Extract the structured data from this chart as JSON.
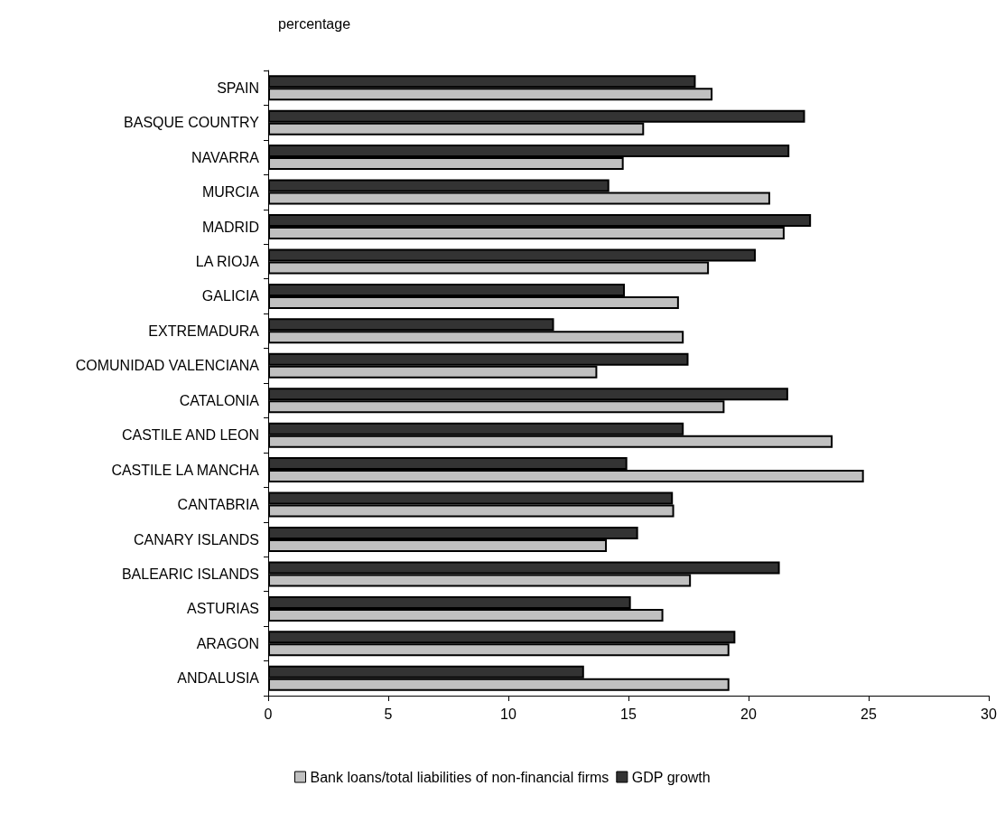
{
  "chart_data": {
    "type": "bar",
    "orientation": "horizontal",
    "xlabel": "percentage",
    "categories": [
      "SPAIN",
      "BASQUE COUNTRY",
      "NAVARRA",
      "MURCIA",
      "MADRID",
      "LA RIOJA",
      "GALICIA",
      "EXTREMADURA",
      "COMUNIDAD VALENCIANA",
      "CATALONIA",
      "CASTILE AND LEON",
      "CASTILE LA MANCHA",
      "CANTABRIA",
      "CANARY ISLANDS",
      "BALEARIC ISLANDS",
      "ASTURIAS",
      "ARAGON",
      "ANDALUSIA"
    ],
    "series": [
      {
        "name": "Bank loans/total liabilities of non-financial firms",
        "color": "#c0c0c0",
        "values": [
          18.5,
          15.65,
          14.8,
          20.9,
          21.5,
          18.35,
          17.1,
          17.3,
          13.7,
          19.0,
          23.5,
          24.8,
          16.9,
          14.1,
          17.6,
          16.45,
          19.2,
          19.2
        ]
      },
      {
        "name": "GDP growth",
        "color": "#333333",
        "values": [
          17.8,
          22.35,
          21.7,
          14.2,
          22.6,
          20.3,
          14.85,
          11.9,
          17.5,
          21.65,
          17.3,
          14.95,
          16.85,
          15.4,
          21.3,
          15.1,
          19.45,
          13.15
        ]
      }
    ],
    "xlim": [
      0,
      30
    ],
    "xticks": [
      0,
      5,
      10,
      15,
      20,
      25,
      30
    ],
    "grid": false,
    "legend": "bottom"
  }
}
